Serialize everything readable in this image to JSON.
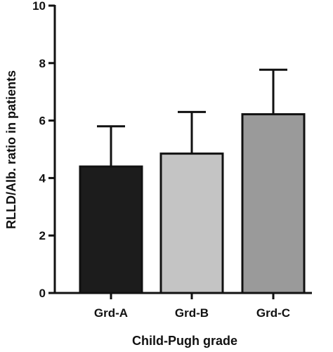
{
  "chart_data": {
    "type": "bar",
    "categories": [
      "Grd-A",
      "Grd-B",
      "Grd-C"
    ],
    "values": [
      4.4,
      4.85,
      6.22
    ],
    "error_upper": [
      1.4,
      1.45,
      1.55
    ],
    "colors": [
      "#1c1c1c",
      "#c4c4c4",
      "#9a9a9a"
    ],
    "xlabel": "Child-Pugh grade",
    "ylabel": "RLLD/Alb. ratio in patients",
    "ylim": [
      0,
      10
    ],
    "yticks": [
      "0",
      "2",
      "4",
      "6",
      "8",
      "10"
    ],
    "grid": false
  }
}
